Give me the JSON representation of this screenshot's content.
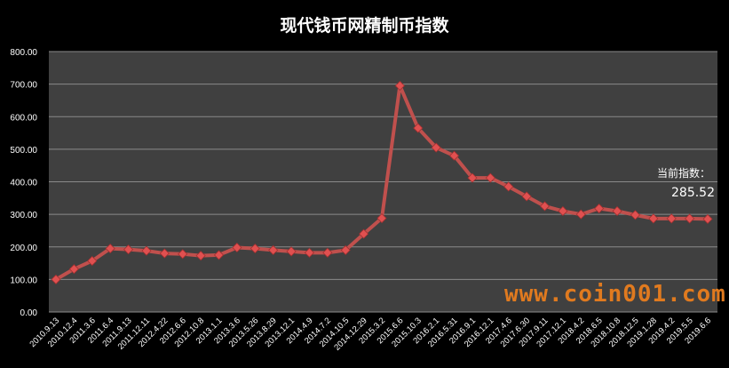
{
  "chart_data": {
    "type": "line",
    "title": "现代钱币网精制币指数",
    "xlabel": "",
    "ylabel": "",
    "ylim": [
      0,
      800
    ],
    "yticks": [
      "0.00",
      "100.00",
      "200.00",
      "300.00",
      "400.00",
      "500.00",
      "600.00",
      "700.00",
      "800.00"
    ],
    "grid": true,
    "categories": [
      "2010.9.13",
      "2010.12.4",
      "2011.3.6",
      "2011.6.4",
      "2011.9.13",
      "2011.12.11",
      "2012.4.22",
      "2012.6.6",
      "2012.10.8",
      "2013.1.1",
      "2013.3.6",
      "2013.5.26",
      "2013.8.29",
      "2013.12.1",
      "2014.4.9",
      "2014.7.2",
      "2014.10.5",
      "2014.12.29",
      "2015.3.2",
      "2015.6.6",
      "2015.10.3",
      "2016.2.1",
      "2016.5.31",
      "2016.9.1",
      "2016.12.1",
      "2017.4.6",
      "2017.6.30",
      "2017.9.11",
      "2017.12.1",
      "2018.4.2",
      "2018.6.5",
      "2018.10.8",
      "2018.12.5",
      "2019.1.28",
      "2019.4.2",
      "2019.5.5",
      "2019.6.6"
    ],
    "values": [
      100,
      132,
      157,
      195,
      192,
      188,
      180,
      178,
      173,
      175,
      198,
      195,
      190,
      186,
      182,
      182,
      190,
      240,
      288,
      695,
      565,
      505,
      480,
      412,
      412,
      385,
      355,
      325,
      310,
      300,
      318,
      310,
      298,
      287,
      287,
      287,
      285.52
    ],
    "colors": {
      "line": "#c0504d",
      "marker": "#e05050",
      "plot_bg": "#404040",
      "grid": "#8a8a8a"
    }
  },
  "annotation": {
    "label": "当前指数：",
    "value": "285.52"
  },
  "watermark": "www.coin001.com"
}
